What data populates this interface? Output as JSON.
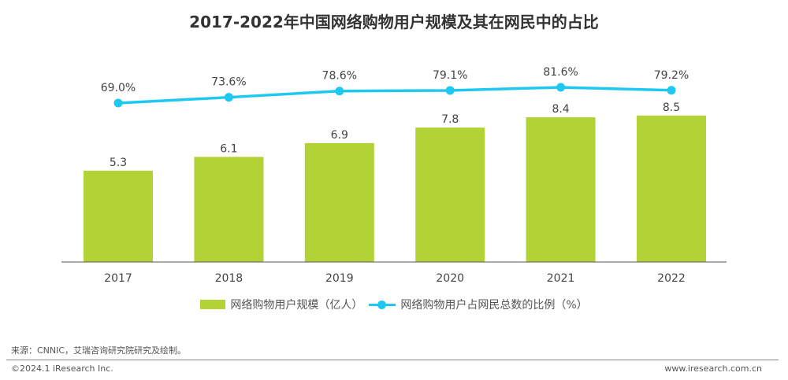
{
  "chart_data": {
    "type": "bar+line",
    "title": "2017-2022年中国网络购物用户规模及其在网民中的占比",
    "categories": [
      "2017",
      "2018",
      "2019",
      "2020",
      "2021",
      "2022"
    ],
    "series": [
      {
        "name": "网络购物用户规模（亿人）",
        "type": "bar",
        "color": "#b2d235",
        "values": [
          5.3,
          6.1,
          6.9,
          7.8,
          8.4,
          8.5
        ],
        "labels": [
          "5.3",
          "6.1",
          "6.9",
          "7.8",
          "8.4",
          "8.5"
        ]
      },
      {
        "name": "网络购物用户占网民总数的比例（%）",
        "type": "line",
        "color": "#1ec8f0",
        "values": [
          69.0,
          73.6,
          78.6,
          79.1,
          81.6,
          79.2
        ],
        "labels": [
          "69.0%",
          "73.6%",
          "78.6%",
          "79.1%",
          "81.6%",
          "79.2%"
        ]
      }
    ],
    "grid": false,
    "legend": "bottom"
  },
  "footer": {
    "source": "来源：CNNIC，艾瑞咨询研究院研究及绘制。",
    "copyright": "©2024.1 iResearch Inc.",
    "website": "www.iresearch.com.cn"
  }
}
